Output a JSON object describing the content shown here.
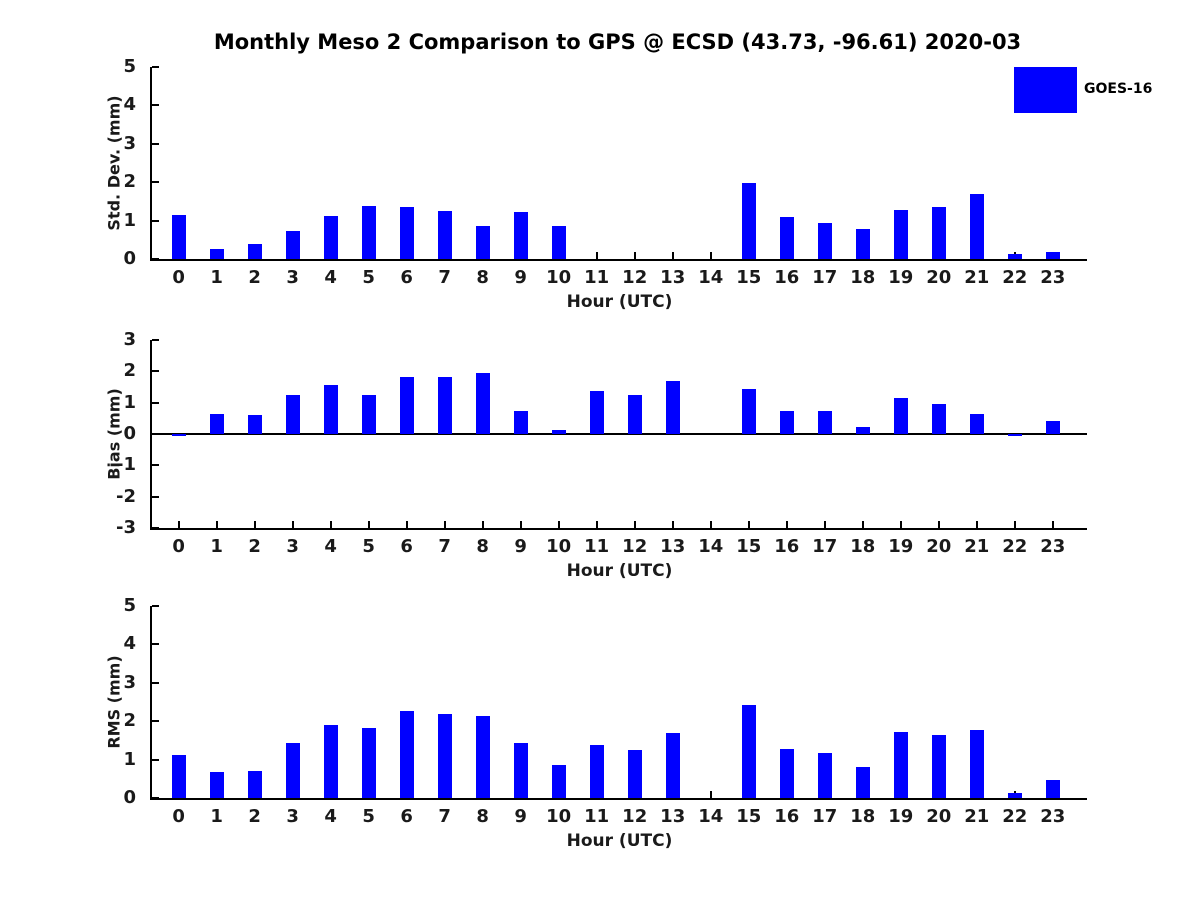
{
  "title": "Monthly Meso 2 Comparison to GPS @ ECSD (43.73, -96.61) 2020-03",
  "legend": {
    "label": "GOES-16",
    "color": "#0000ff",
    "position": "top-right"
  },
  "colors": {
    "bar": "#0000ff",
    "axis": "#000000",
    "text": "#1a1a1a"
  },
  "chart_data": [
    {
      "type": "bar",
      "name": "std-dev-subplot",
      "ylabel": "Std. Dev. (mm)",
      "xlabel": "Hour (UTC)",
      "categories": [
        0,
        1,
        2,
        3,
        4,
        5,
        6,
        7,
        8,
        9,
        10,
        11,
        12,
        13,
        14,
        15,
        16,
        17,
        18,
        19,
        20,
        21,
        22,
        23
      ],
      "values": [
        1.14,
        0.25,
        0.38,
        0.72,
        1.12,
        1.38,
        1.35,
        1.26,
        0.86,
        1.23,
        0.86,
        0,
        0,
        0,
        0,
        1.97,
        1.1,
        0.95,
        0.79,
        1.27,
        1.36,
        1.68,
        0.12,
        0.19
      ],
      "ylim": [
        0,
        5
      ],
      "yticks": [
        0,
        1,
        2,
        3,
        4,
        5
      ],
      "grid": false,
      "legend_entry": "GOES-16"
    },
    {
      "type": "bar",
      "name": "bias-subplot",
      "ylabel": "Bias (mm)",
      "xlabel": "Hour (UTC)",
      "categories": [
        0,
        1,
        2,
        3,
        4,
        5,
        6,
        7,
        8,
        9,
        10,
        11,
        12,
        13,
        14,
        15,
        16,
        17,
        18,
        19,
        20,
        21,
        22,
        23
      ],
      "values": [
        -0.05,
        0.65,
        0.62,
        1.23,
        1.55,
        1.23,
        1.83,
        1.83,
        1.95,
        0.75,
        0.13,
        1.38,
        1.26,
        1.7,
        0,
        1.45,
        0.72,
        0.74,
        0.22,
        1.16,
        0.95,
        0.63,
        -0.04,
        0.42
      ],
      "ylim": [
        -3,
        3
      ],
      "yticks": [
        -3,
        -2,
        -1,
        0,
        1,
        2,
        3
      ],
      "grid": false,
      "legend_entry": "GOES-16"
    },
    {
      "type": "bar",
      "name": "rms-subplot",
      "ylabel": "RMS (mm)",
      "xlabel": "Hour (UTC)",
      "categories": [
        0,
        1,
        2,
        3,
        4,
        5,
        6,
        7,
        8,
        9,
        10,
        11,
        12,
        13,
        14,
        15,
        16,
        17,
        18,
        19,
        20,
        21,
        22,
        23
      ],
      "values": [
        1.12,
        0.67,
        0.7,
        1.43,
        1.9,
        1.83,
        2.27,
        2.18,
        2.13,
        1.42,
        0.86,
        1.38,
        1.26,
        1.68,
        0,
        2.43,
        1.28,
        1.17,
        0.8,
        1.72,
        1.63,
        1.77,
        0.12,
        0.47
      ],
      "ylim": [
        0,
        5
      ],
      "yticks": [
        0,
        1,
        2,
        3,
        4,
        5
      ],
      "grid": false,
      "legend_entry": "GOES-16"
    }
  ]
}
